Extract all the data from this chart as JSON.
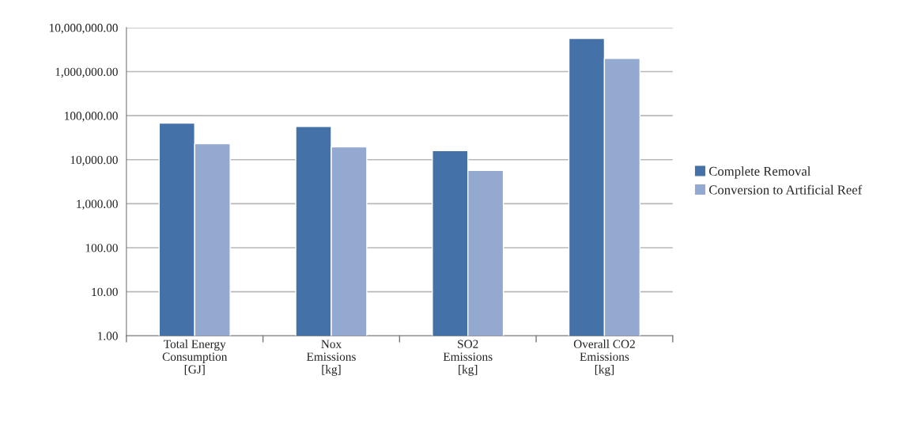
{
  "chart_data": {
    "type": "bar",
    "categories": [
      "Total Energy\nConsumption\n[GJ]",
      "Nox\nEmissions\n[kg]",
      "SO2\nEmissions\n[kg]",
      "Overall CO2\nEmissions\n[kg]"
    ],
    "series": [
      {
        "name": "Complete Removal",
        "color": "#4472a8",
        "values": [
          68000,
          57000,
          16000,
          5700000
        ]
      },
      {
        "name": "Conversion to Artificial Reef",
        "color": "#93a9d0",
        "values": [
          23000,
          19500,
          5700,
          2000000
        ]
      }
    ],
    "log": "y",
    "ylim": [
      1,
      10000000
    ],
    "yticks": [
      {
        "value": 1,
        "label": "1.00"
      },
      {
        "value": 10,
        "label": "10.00"
      },
      {
        "value": 100,
        "label": "100.00"
      },
      {
        "value": 1000,
        "label": "1,000.00"
      },
      {
        "value": 10000,
        "label": "10,000.00"
      },
      {
        "value": 100000,
        "label": "100,000.00"
      },
      {
        "value": 1000000,
        "label": "1,000,000.00"
      },
      {
        "value": 10000000,
        "label": "10,000,000.00"
      }
    ],
    "grid": "y",
    "legend": "right"
  }
}
